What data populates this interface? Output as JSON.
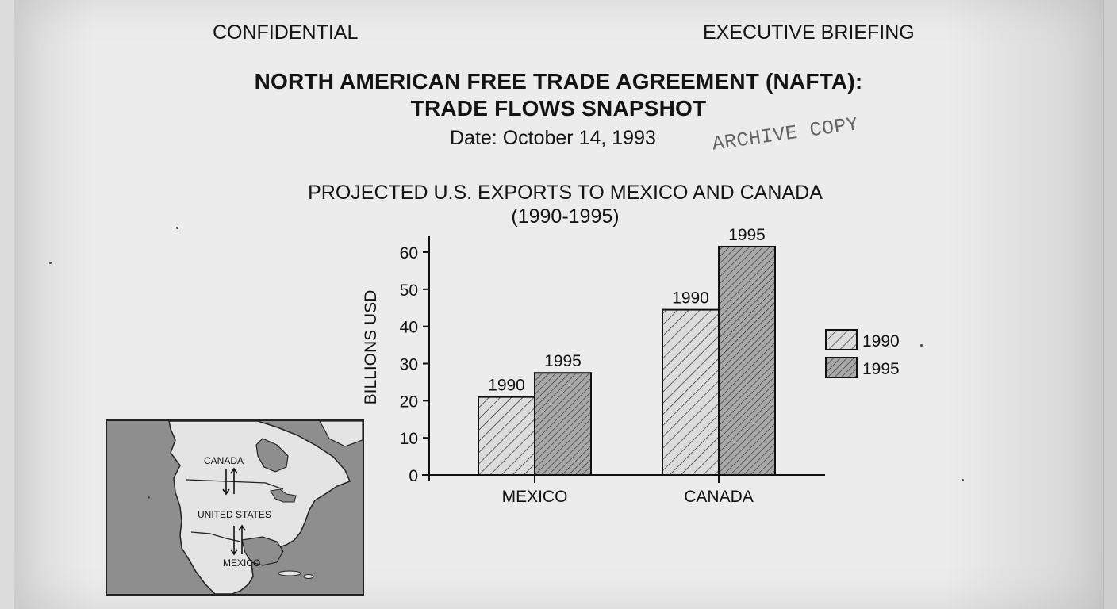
{
  "header": {
    "left": "CONFIDENTIAL",
    "right": "EXECUTIVE BRIEFING"
  },
  "title_lines": [
    "NORTH AMERICAN FREE TRADE AGREEMENT (NAFTA):",
    "TRADE FLOWS SNAPSHOT"
  ],
  "date": "Date: October 14, 1993",
  "stamp": "ARCHIVE COPY",
  "chart_title_lines": [
    "PROJECTED  U.S. EXPORTS TO MEXICO AND CANADA",
    "(1990-1995)"
  ],
  "map": {
    "labels": {
      "canada": "CANADA",
      "us": "UNITED STATES",
      "mexico": "MEXICO"
    },
    "arrow_icon": "bidirectional-arrows-icon"
  },
  "chart_data": {
    "type": "bar",
    "title": "PROJECTED  U.S. EXPORTS TO MEXICO AND CANADA (1990-1995)",
    "categories": [
      "MEXICO",
      "CANADA"
    ],
    "series": [
      {
        "name": "1990",
        "values": [
          21,
          44.5
        ]
      },
      {
        "name": "1995",
        "values": [
          27.5,
          61.5
        ]
      }
    ],
    "xlabel": "",
    "ylabel": "BILLIONS USD",
    "ylim": [
      0,
      60
    ],
    "yticks": [
      0,
      10,
      20,
      30,
      40,
      50,
      60
    ],
    "grid": false,
    "legend": "right",
    "data_labels": "series name above each bar",
    "colors": {
      "series_1990": "#dcdcdc",
      "series_1995": "#a8a8a8",
      "hatch": "#222222"
    }
  }
}
